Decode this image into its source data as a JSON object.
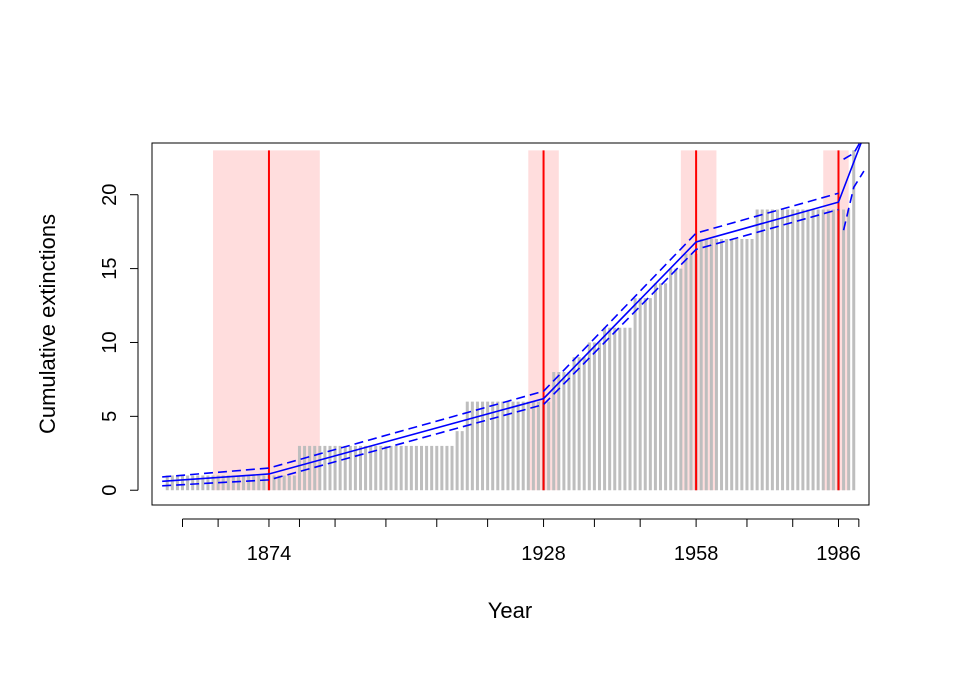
{
  "chart_data": {
    "type": "bar",
    "title": "",
    "xlabel": "Year",
    "ylabel": "Cumulative extinctions",
    "xlim": [
      1851,
      1992
    ],
    "ylim": [
      -1,
      23.5
    ],
    "x_ticks_labeled": [
      "1874",
      "1928",
      "1958",
      "1986"
    ],
    "x_ticks_unlabeled": [
      1857,
      1864,
      1880,
      1887,
      1897,
      1907,
      1917,
      1938,
      1947,
      1968,
      1977,
      1990
    ],
    "y_ticks": [
      "0",
      "5",
      "10",
      "15",
      "20"
    ],
    "grid": false,
    "legend": "none",
    "colors": {
      "bars": "#bebebe",
      "breakpoint_line": "#ff0000",
      "breakpoint_band": "#ffdddd",
      "fit_line": "#0000ff",
      "ci_line": "#0000ff"
    },
    "bars": {
      "x_start": 1853,
      "x_end": 1989,
      "step": 1,
      "cumulative_steps": [
        {
          "year": 1853,
          "value": 0
        },
        {
          "year": 1854,
          "value": 1
        },
        {
          "year": 1880,
          "value": 3
        },
        {
          "year": 1911,
          "value": 4
        },
        {
          "year": 1913,
          "value": 6
        },
        {
          "year": 1921,
          "value": 6
        },
        {
          "year": 1930,
          "value": 8
        },
        {
          "year": 1934,
          "value": 9
        },
        {
          "year": 1937,
          "value": 10
        },
        {
          "year": 1940,
          "value": 11
        },
        {
          "year": 1946,
          "value": 13
        },
        {
          "year": 1950,
          "value": 14
        },
        {
          "year": 1953,
          "value": 15
        },
        {
          "year": 1956,
          "value": 16
        },
        {
          "year": 1959,
          "value": 17
        },
        {
          "year": 1970,
          "value": 19
        },
        {
          "year": 1976,
          "value": 19
        },
        {
          "year": 1989,
          "value": 23
        }
      ]
    },
    "breakpoints": [
      {
        "year": 1874,
        "ci": [
          1863,
          1884
        ]
      },
      {
        "year": 1928,
        "ci": [
          1925,
          1931
        ]
      },
      {
        "year": 1958,
        "ci": [
          1955,
          1962
        ]
      },
      {
        "year": 1986,
        "ci": [
          1983,
          1988
        ]
      }
    ],
    "fit": {
      "x": [
        1853,
        1874,
        1928,
        1958,
        1986,
        1991
      ],
      "y": [
        0.6,
        1.1,
        6.2,
        16.8,
        19.5,
        24
      ]
    },
    "ci_upper": {
      "x": [
        1853,
        1874,
        1928,
        1958,
        1986
      ],
      "y": [
        0.9,
        1.5,
        6.7,
        17.4,
        20.1
      ]
    },
    "ci_lower": {
      "x": [
        1853,
        1874,
        1928,
        1958,
        1986
      ],
      "y": [
        0.3,
        0.7,
        5.8,
        16.3,
        19.0
      ]
    },
    "ci_upper_tail": {
      "x": [
        1987,
        1989,
        1991
      ],
      "y": [
        22.4,
        22.8,
        24
      ]
    },
    "ci_lower_tail": {
      "x": [
        1987,
        1989,
        1991
      ],
      "y": [
        17.6,
        20.5,
        21.6
      ]
    }
  }
}
